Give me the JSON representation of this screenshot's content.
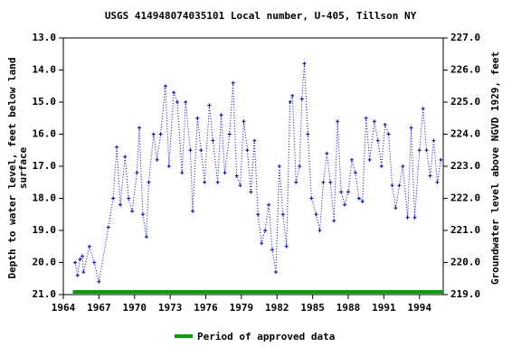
{
  "chart_data": {
    "type": "scatter-line",
    "title": "USGS 414948074035101 Local number, U-405, Tillson NY",
    "ylabel": [
      "Depth to water level, feet below land",
      "surface"
    ],
    "y2label": "Groundwater level above NGVD 1929, feet",
    "xlim": [
      1964,
      1996
    ],
    "xticks": [
      1964,
      1967,
      1970,
      1973,
      1976,
      1979,
      1982,
      1985,
      1988,
      1991,
      1994
    ],
    "ylim": [
      13,
      21
    ],
    "invert_y": true,
    "yticks": [
      {
        "value": 13,
        "label": "13.0"
      },
      {
        "value": 14,
        "label": "14.0"
      },
      {
        "value": 15,
        "label": "15.0"
      },
      {
        "value": 16,
        "label": "16.0"
      },
      {
        "value": 17,
        "label": "17.0"
      },
      {
        "value": 18,
        "label": "18.0"
      },
      {
        "value": 19,
        "label": "19.0"
      },
      {
        "value": 20,
        "label": "20.0"
      },
      {
        "value": 21,
        "label": "21.0"
      }
    ],
    "y2lim": [
      219,
      227
    ],
    "y2ticks": [
      {
        "value": 219,
        "label": "219.0"
      },
      {
        "value": 220,
        "label": "220.0"
      },
      {
        "value": 221,
        "label": "221.0"
      },
      {
        "value": 222,
        "label": "222.0"
      },
      {
        "value": 223,
        "label": "223.0"
      },
      {
        "value": 224,
        "label": "224.0"
      },
      {
        "value": 225,
        "label": "225.0"
      },
      {
        "value": 226,
        "label": "226.0"
      },
      {
        "value": 227,
        "label": "227.0"
      }
    ],
    "series": [
      {
        "color": "#0000cc",
        "x": [
          1965.0,
          1965.2,
          1965.4,
          1965.6,
          1965.7,
          1966.2,
          1966.6,
          1967.0,
          1967.8,
          1968.2,
          1968.5,
          1968.8,
          1969.2,
          1969.5,
          1969.8,
          1970.2,
          1970.4,
          1970.7,
          1971.0,
          1971.2,
          1971.6,
          1971.9,
          1972.2,
          1972.6,
          1972.9,
          1973.3,
          1973.6,
          1974.0,
          1974.3,
          1974.7,
          1974.9,
          1975.3,
          1975.6,
          1975.9,
          1976.3,
          1976.6,
          1977.0,
          1977.3,
          1977.6,
          1978.0,
          1978.3,
          1978.6,
          1978.9,
          1979.2,
          1979.5,
          1979.8,
          1980.1,
          1980.4,
          1980.7,
          1981.0,
          1981.3,
          1981.6,
          1981.9,
          1982.2,
          1982.5,
          1982.8,
          1983.1,
          1983.3,
          1983.6,
          1983.9,
          1984.1,
          1984.3,
          1984.6,
          1984.9,
          1985.3,
          1985.6,
          1985.9,
          1986.2,
          1986.5,
          1986.8,
          1987.1,
          1987.4,
          1987.7,
          1988.0,
          1988.3,
          1988.6,
          1988.9,
          1989.2,
          1989.5,
          1989.8,
          1990.2,
          1990.5,
          1990.8,
          1991.1,
          1991.4,
          1991.7,
          1992.0,
          1992.3,
          1992.6,
          1993.0,
          1993.3,
          1993.6,
          1994.0,
          1994.3,
          1994.6,
          1994.9,
          1995.2,
          1995.5,
          1995.8
        ],
        "values": [
          20.0,
          20.4,
          19.9,
          19.8,
          20.3,
          19.5,
          20.0,
          20.6,
          18.9,
          18.0,
          16.4,
          18.2,
          16.7,
          18.0,
          18.4,
          17.2,
          15.8,
          18.5,
          19.2,
          17.5,
          16.0,
          16.8,
          16.0,
          14.5,
          17.0,
          14.7,
          15.0,
          17.2,
          15.0,
          16.5,
          18.4,
          15.5,
          16.5,
          17.5,
          15.1,
          16.2,
          17.5,
          15.4,
          17.2,
          16.0,
          14.4,
          17.3,
          17.6,
          15.6,
          16.5,
          17.8,
          16.2,
          18.5,
          19.4,
          19.0,
          18.2,
          19.6,
          20.3,
          17.0,
          18.5,
          19.5,
          15.0,
          14.8,
          17.5,
          17.0,
          14.9,
          13.8,
          16.0,
          18.0,
          18.5,
          19.0,
          17.5,
          16.6,
          17.5,
          18.7,
          15.6,
          17.8,
          18.2,
          17.8,
          16.8,
          17.2,
          18.0,
          18.1,
          15.5,
          16.8,
          15.6,
          16.2,
          17.0,
          15.7,
          16.0,
          17.6,
          18.3,
          17.6,
          17.0,
          18.6,
          15.8,
          18.6,
          16.5,
          15.2,
          16.5,
          17.3,
          16.2,
          17.5,
          16.8
        ]
      }
    ],
    "approved_period": {
      "name": "Period of approved data",
      "color": "#00a000",
      "x": [
        1964.8,
        1996
      ],
      "value": 21
    }
  }
}
